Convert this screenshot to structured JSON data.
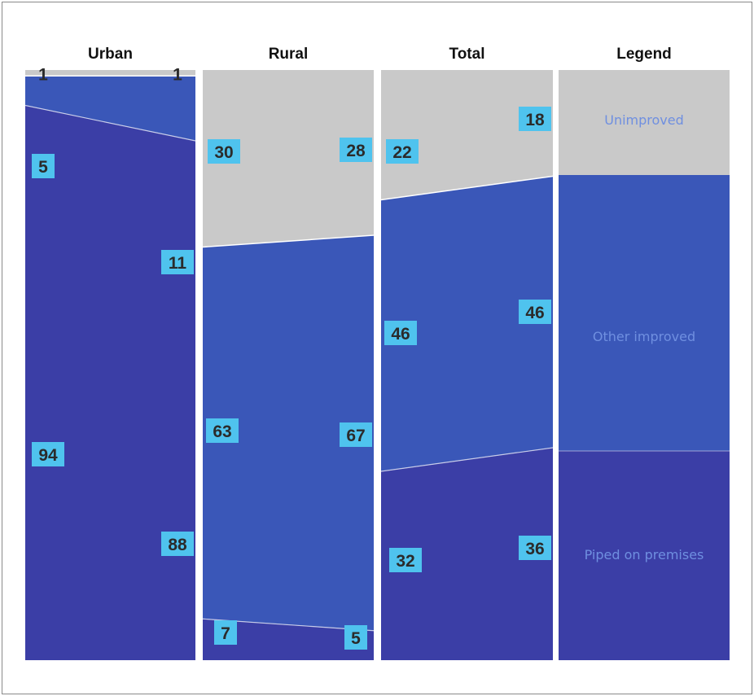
{
  "chart_data": {
    "type": "area",
    "description_labels": {
      "left_end": "",
      "right_end": ""
    },
    "categories": [
      "Unimproved",
      "Other improved",
      "Piped on premises"
    ],
    "colors": {
      "Unimproved": "#c9c9c9",
      "Other improved": "#3a57b8",
      "Piped on premises": "#3b3ea6",
      "badge": "#4fc3ee",
      "legend_text": "#6f8fe0"
    },
    "panels": [
      {
        "title": "Urban",
        "start": {
          "Unimproved": 1,
          "Other improved": 5,
          "Piped on premises": 94
        },
        "end": {
          "Unimproved": 1,
          "Other improved": 11,
          "Piped on premises": 88
        },
        "labels": {
          "unimproved_start": "1",
          "unimproved_end": "1",
          "other_start": "5",
          "other_end": "11",
          "piped_start": "94",
          "piped_end": "88"
        }
      },
      {
        "title": "Rural",
        "start": {
          "Unimproved": 30,
          "Other improved": 63,
          "Piped on premises": 7
        },
        "end": {
          "Unimproved": 28,
          "Other improved": 67,
          "Piped on premises": 5
        },
        "labels": {
          "unimproved_start": "30",
          "unimproved_end": "28",
          "other_start": "63",
          "other_end": "67",
          "piped_start": "7",
          "piped_end": "5"
        }
      },
      {
        "title": "Total",
        "start": {
          "Unimproved": 22,
          "Other improved": 46,
          "Piped on premises": 32
        },
        "end": {
          "Unimproved": 18,
          "Other improved": 46,
          "Piped on premises": 36
        },
        "labels": {
          "unimproved_start": "22",
          "unimproved_end": "18",
          "other_start": "46",
          "other_end": "46",
          "piped_start": "32",
          "piped_end": "36"
        }
      }
    ],
    "legend": {
      "title": "Legend",
      "items": [
        "Unimproved",
        "Other improved",
        "Piped on premises"
      ]
    }
  }
}
